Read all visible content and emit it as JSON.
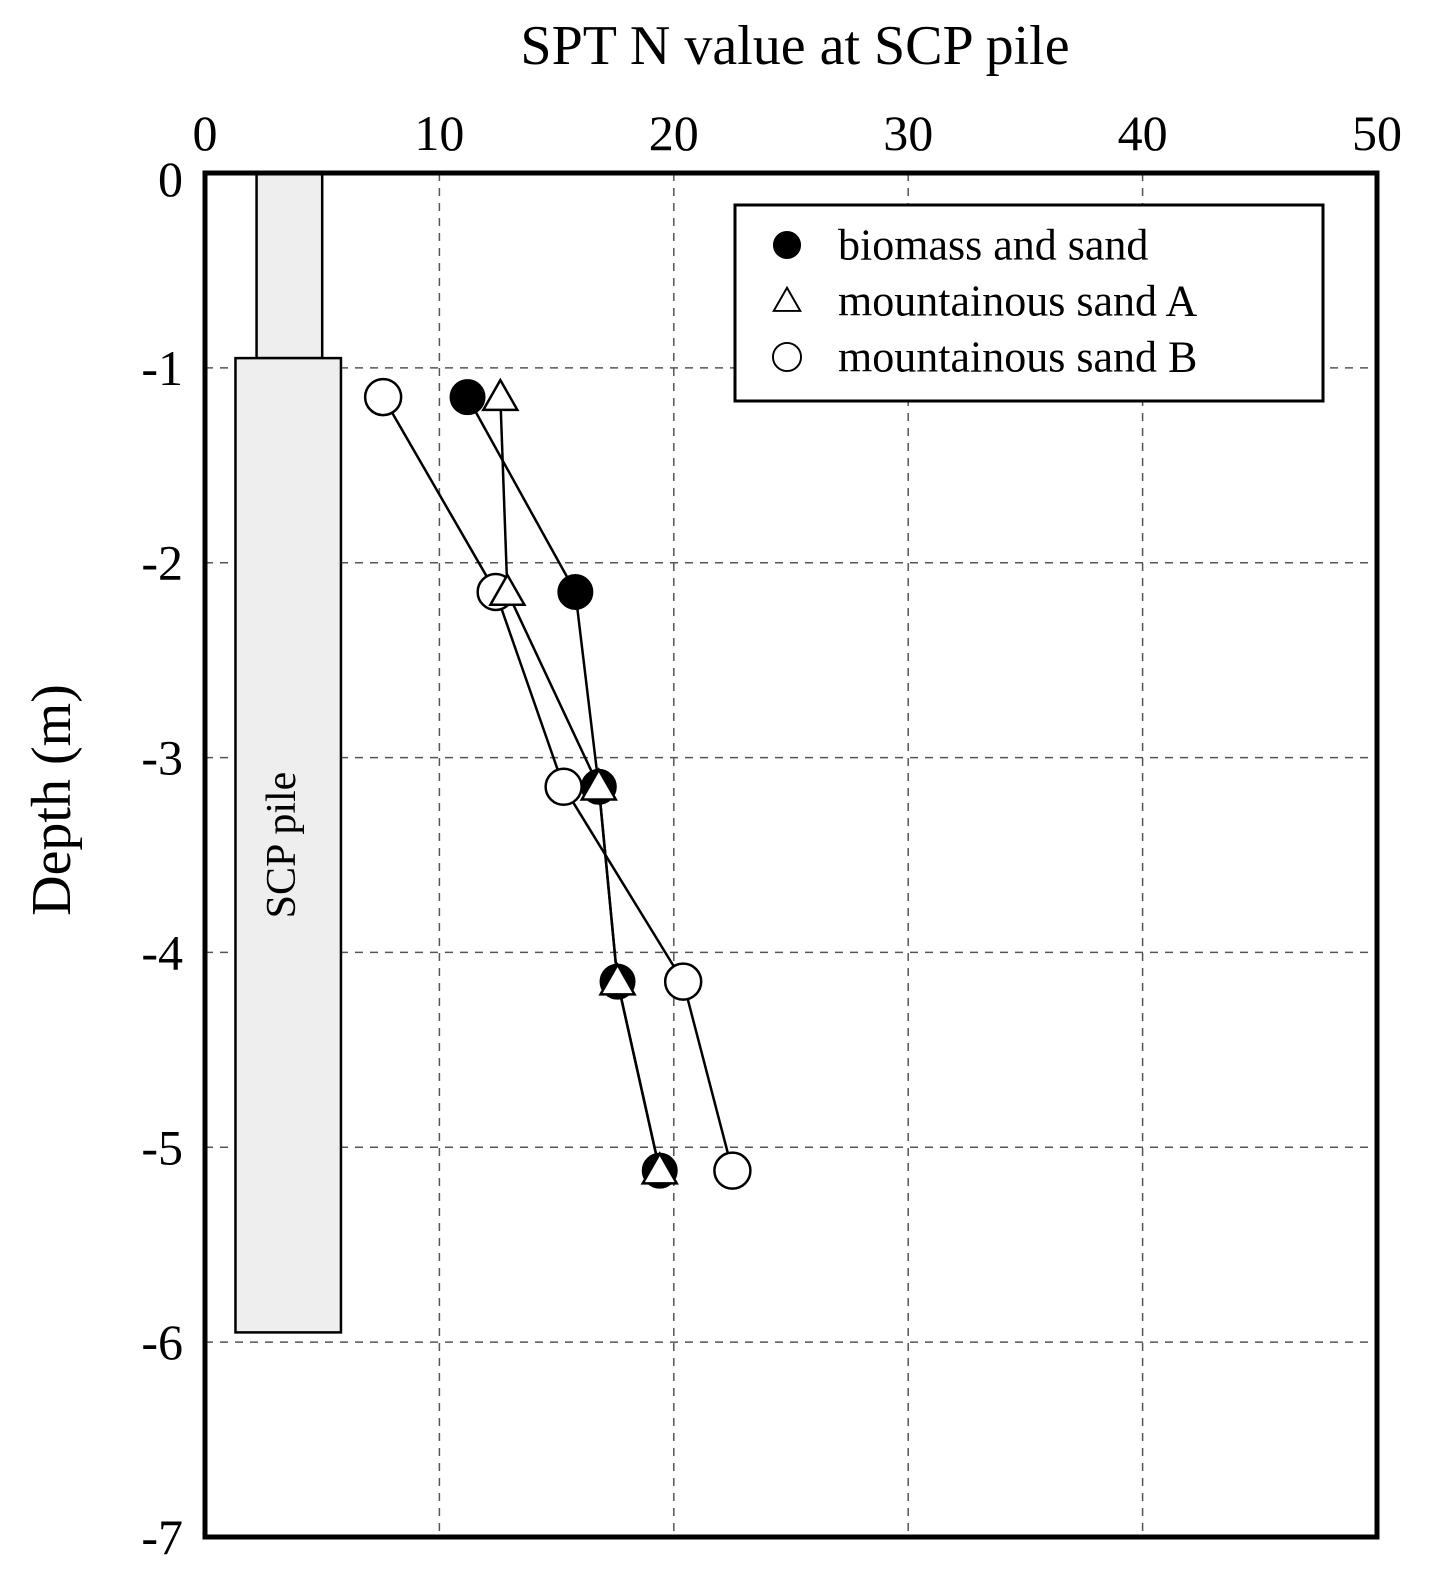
{
  "chart_data": {
    "type": "scatter",
    "title": "",
    "xlabel": "SPT N value at SCP pile",
    "ylabel": "Depth (m)",
    "xlim": [
      0,
      50
    ],
    "ylim": [
      -7,
      0
    ],
    "x_ticks": [
      0,
      10,
      20,
      30,
      40,
      50
    ],
    "y_ticks": [
      0,
      -1,
      -2,
      -3,
      -4,
      -5,
      -6,
      -7
    ],
    "x_tick_labels": [
      "0",
      "10",
      "20",
      "30",
      "40",
      "50"
    ],
    "y_tick_labels": [
      "0",
      "-1",
      "-2",
      "-3",
      "-4",
      "-5",
      "-6",
      "-7"
    ],
    "x_axis_position": "top",
    "grid": true,
    "legend_position": "top-right",
    "series": [
      {
        "name": "biomass and sand",
        "marker": "filled-circle",
        "points": [
          {
            "x": 11.2,
            "y": -1.15
          },
          {
            "x": 15.8,
            "y": -2.15
          },
          {
            "x": 16.8,
            "y": -3.15
          },
          {
            "x": 17.6,
            "y": -4.15
          },
          {
            "x": 19.4,
            "y": -5.12
          }
        ]
      },
      {
        "name": "mountainous sand A",
        "marker": "open-triangle",
        "points": [
          {
            "x": 12.6,
            "y": -1.15
          },
          {
            "x": 12.9,
            "y": -2.15
          },
          {
            "x": 16.8,
            "y": -3.15
          },
          {
            "x": 17.6,
            "y": -4.15
          },
          {
            "x": 19.4,
            "y": -5.12
          }
        ]
      },
      {
        "name": "mountainous sand B",
        "marker": "open-circle",
        "points": [
          {
            "x": 7.6,
            "y": -1.15
          },
          {
            "x": 12.4,
            "y": -2.15
          },
          {
            "x": 15.3,
            "y": -3.15
          },
          {
            "x": 20.4,
            "y": -4.15
          },
          {
            "x": 22.5,
            "y": -5.12
          }
        ]
      }
    ],
    "annotations": {
      "pile_label": "SCP pile",
      "pile_top_section": {
        "x0": 2.2,
        "x1": 5.0,
        "y0": 0,
        "y1": -0.95
      },
      "pile_main_section": {
        "x0": 1.3,
        "x1": 5.8,
        "y0": -0.95,
        "y1": -5.95
      },
      "pile_fill": "#eeeeee"
    }
  }
}
